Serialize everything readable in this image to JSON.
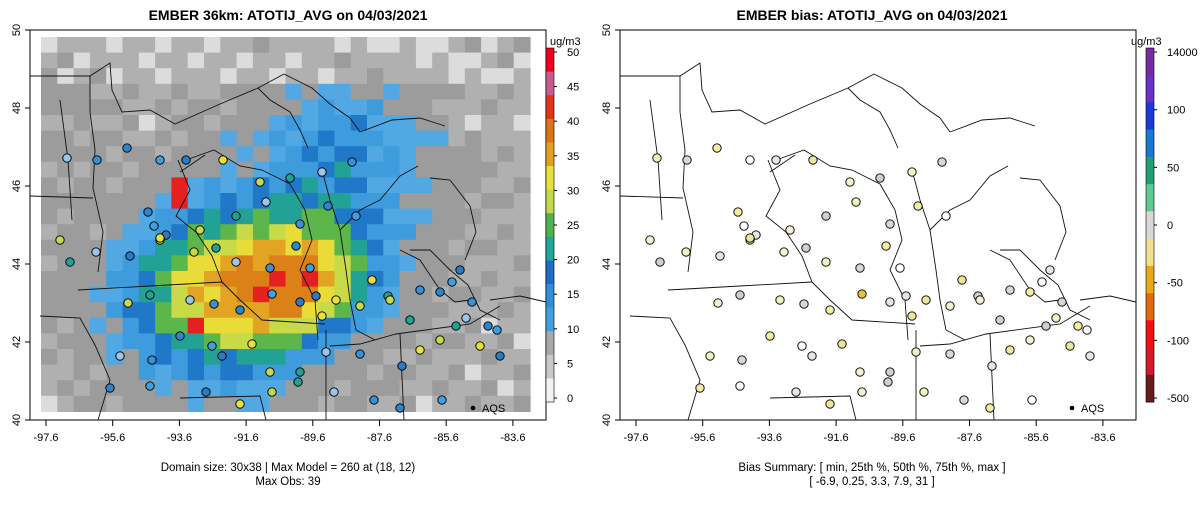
{
  "left_panel": {
    "title": "EMBER 36km: ATOTIJ_AVG on 04/03/2021",
    "x_ticks": [
      "-97.6",
      "-95.6",
      "-93.6",
      "-91.6",
      "-89.6",
      "-87.6",
      "-85.6",
      "-83.6"
    ],
    "y_ticks": [
      "40",
      "42",
      "44",
      "46",
      "48",
      "50"
    ],
    "legend_point_label": "AQS",
    "footer_line1": "Domain size: 30x38 | Max Model = 260 at (18, 12)",
    "footer_line2": "Max Obs: 39",
    "colorbar": {
      "unit": "ug/m3",
      "labels": [
        "0",
        "5",
        "10",
        "15",
        "20",
        "25",
        "30",
        "35",
        "40",
        "45",
        "50"
      ],
      "colors": [
        "#f2f2f2",
        "#c8c8c8",
        "#a8a8a8",
        "#41a0e0",
        "#2f8fd8",
        "#1c6ec4",
        "#21a69a",
        "#4fb34c",
        "#c4d84c",
        "#e8e03c",
        "#e4a020",
        "#d9741a",
        "#e23418",
        "#c95c8c",
        "#f00020"
      ]
    }
  },
  "right_panel": {
    "title": "EMBER bias: ATOTIJ_AVG on 04/03/2021",
    "x_ticks": [
      "-97.6",
      "-95.6",
      "-93.6",
      "-91.6",
      "-89.6",
      "-87.6",
      "-85.6",
      "-83.6"
    ],
    "y_ticks": [
      "40",
      "42",
      "44",
      "46",
      "48",
      "50"
    ],
    "legend_point_label": "AQS",
    "footer_line1": "Bias Summary: [ min, 25th %, 50th %, 75th %, max ]",
    "footer_line2": "[ -6.9,   0.25,   3.3,   7.9,   31 ]",
    "colorbar": {
      "unit": "ug/m3",
      "labels": [
        "14000",
        "100",
        "50",
        "0",
        "-50",
        "-100",
        "-500"
      ],
      "colors": [
        "#6a1a1a",
        "#d41a2a",
        "#f01010",
        "#e06a10",
        "#e8a818",
        "#f0e090",
        "#d8d8d8",
        "#60c890",
        "#20a070",
        "#1a78d0",
        "#1a3ad8",
        "#6a30c8",
        "#7a2aa0"
      ]
    }
  }
}
